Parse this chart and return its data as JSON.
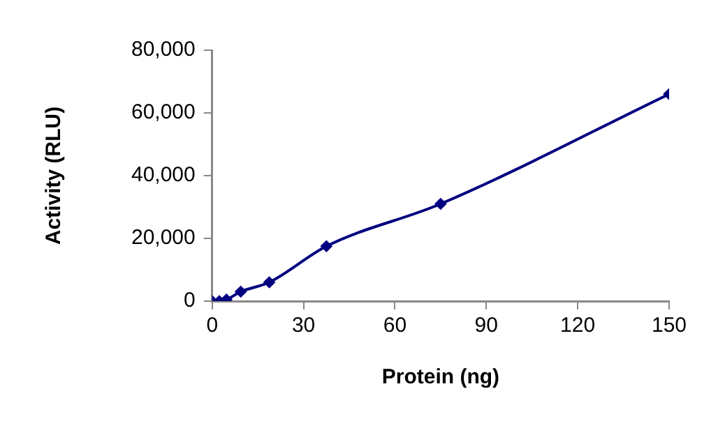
{
  "chart_data": {
    "type": "line",
    "xlabel": "Protein (ng)",
    "ylabel": "Activity (RLU)",
    "x": [
      0,
      2.34,
      4.69,
      9.38,
      18.75,
      37.5,
      75,
      150
    ],
    "series": [
      {
        "color": "#000080",
        "values": [
          0,
          0,
          500,
          3000,
          6000,
          17500,
          31000,
          66000
        ]
      }
    ],
    "xlim": [
      0,
      150
    ],
    "xticks": [
      0,
      30,
      60,
      90,
      120,
      150
    ],
    "ylim": [
      0,
      80000
    ],
    "yticks": [
      0,
      {
        "value": 20000,
        "label": "20,000"
      },
      {
        "value": 40000,
        "label": "40,000"
      },
      {
        "value": 60000,
        "label": "60,000"
      },
      {
        "value": 80000,
        "label": "80,000"
      }
    ],
    "grid": false,
    "legend": false,
    "marker": "diamond",
    "line_style": "solid"
  }
}
